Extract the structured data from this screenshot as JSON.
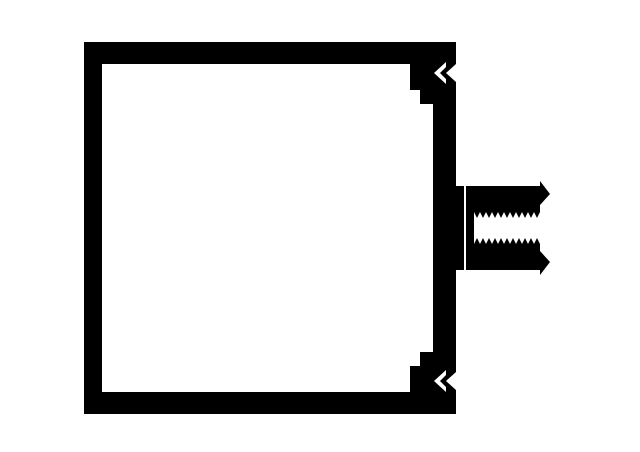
{
  "drawing": {
    "background_color": "#ffffff",
    "ink_color": "#000000",
    "components": [
      "square-tube-profile",
      "front-lip-top",
      "front-lip-bottom",
      "snap-hook-top-icon",
      "snap-hook-bottom-icon",
      "t-slot-flange",
      "threaded-channel"
    ]
  }
}
